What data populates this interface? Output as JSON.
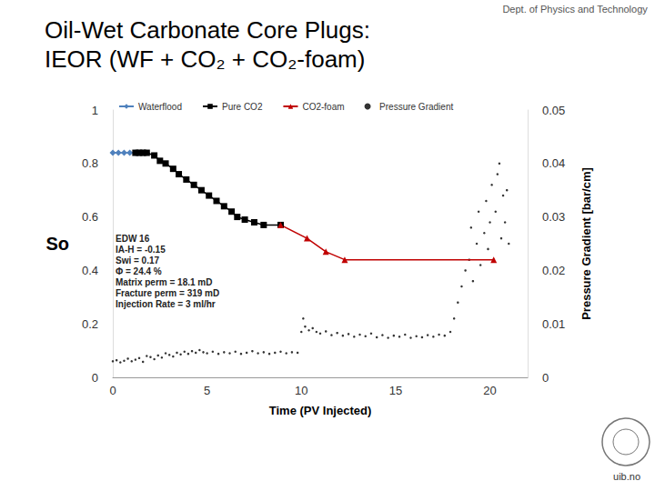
{
  "header": "Dept. of Physics and Technology",
  "footer": "uib.no",
  "chart_data": {
    "type": "line",
    "title": "Oil-Wet Carbonate Core Plugs:",
    "subtitle": "IEOR (WF + CO₂ + CO₂-foam)",
    "x_label": "Time (PV Injected)",
    "y_label": "So",
    "y2_label": "Pressure Gradient [bar/cm]",
    "xlim": [
      0,
      22
    ],
    "xticks": [
      0,
      5,
      10,
      15,
      20
    ],
    "ylim": [
      0,
      1
    ],
    "yticks": [
      0,
      0.2,
      0.4,
      0.6,
      0.8,
      1
    ],
    "y2lim": [
      0,
      0.05
    ],
    "y2ticks": [
      0,
      0.01,
      0.02,
      0.03,
      0.04,
      0.05
    ],
    "grid": false,
    "legend": "top",
    "annotation": [
      "EDW 16",
      "IA-H = -0.15",
      "Swi = 0.17",
      "Φ = 24.4 %",
      "Matrix perm = 18.1 mD",
      "Fracture perm = 319 mD",
      "Injection Rate = 3 ml/hr"
    ],
    "series": [
      {
        "name": "Waterflood",
        "type": "line",
        "color": "#4f81bd",
        "marker": "diamond",
        "line_style": "solid",
        "x": [
          0,
          0.3,
          0.6,
          0.9,
          1.2
        ],
        "values": [
          0.84,
          0.84,
          0.84,
          0.84,
          0.84
        ]
      },
      {
        "name": "Pure CO2",
        "type": "line",
        "color": "#000000",
        "marker": "square",
        "line_style": "solid",
        "x": [
          1.2,
          1.4,
          1.6,
          1.8,
          2.2,
          2.5,
          2.8,
          3.2,
          3.5,
          3.9,
          4.3,
          4.7,
          5.1,
          5.5,
          5.9,
          6.3,
          6.6,
          7.0,
          7.5,
          8.0,
          8.9
        ],
        "values": [
          0.84,
          0.84,
          0.84,
          0.84,
          0.83,
          0.81,
          0.8,
          0.78,
          0.76,
          0.74,
          0.72,
          0.7,
          0.68,
          0.66,
          0.64,
          0.62,
          0.6,
          0.59,
          0.58,
          0.57,
          0.57
        ]
      },
      {
        "name": "CO2-foam",
        "type": "line",
        "color": "#c00000",
        "marker": "triangle",
        "line_style": "solid",
        "x": [
          8.9,
          10.3,
          11.3,
          12.3,
          20.2
        ],
        "values": [
          0.57,
          0.52,
          0.47,
          0.44,
          0.44
        ]
      },
      {
        "name": "Pressure Gradient",
        "type": "scatter",
        "axis": "y2",
        "color": "#000000",
        "marker": "circle",
        "x": [
          0.0,
          0.2,
          0.4,
          0.6,
          0.8,
          1.0,
          1.2,
          1.4,
          1.6,
          1.8,
          2.0,
          2.2,
          2.4,
          2.6,
          2.8,
          3.0,
          3.2,
          3.4,
          3.6,
          3.8,
          4.0,
          4.2,
          4.4,
          4.6,
          4.8,
          5.0,
          5.3,
          5.6,
          5.9,
          6.2,
          6.5,
          6.8,
          7.1,
          7.4,
          7.7,
          8.0,
          8.3,
          8.6,
          8.9,
          9.2,
          9.5,
          9.8,
          10.0,
          10.1,
          10.2,
          10.4,
          10.6,
          10.8,
          11.0,
          11.3,
          11.6,
          11.9,
          12.2,
          12.5,
          12.8,
          13.1,
          13.4,
          13.7,
          14.0,
          14.3,
          14.6,
          14.9,
          15.2,
          15.5,
          15.8,
          16.1,
          16.4,
          16.7,
          17.0,
          17.3,
          17.6,
          17.9,
          18.1,
          18.3,
          18.5,
          18.7,
          18.9,
          19.0,
          19.1,
          19.3,
          19.4,
          19.5,
          19.7,
          19.8,
          19.9,
          20.0,
          20.1,
          20.2,
          20.3,
          20.4,
          20.5,
          20.6,
          20.7,
          20.8,
          20.9,
          21.0
        ],
        "values": [
          0.003,
          0.0032,
          0.0028,
          0.0031,
          0.0035,
          0.003,
          0.0033,
          0.0036,
          0.0029,
          0.004,
          0.0038,
          0.0034,
          0.0041,
          0.0037,
          0.0045,
          0.0042,
          0.0039,
          0.0046,
          0.0043,
          0.0048,
          0.0044,
          0.0049,
          0.0046,
          0.0051,
          0.0047,
          0.0045,
          0.0048,
          0.0044,
          0.0047,
          0.0045,
          0.0048,
          0.0044,
          0.0046,
          0.0049,
          0.0045,
          0.0047,
          0.0044,
          0.0046,
          0.0048,
          0.0045,
          0.0047,
          0.0046,
          0.0085,
          0.011,
          0.0095,
          0.0088,
          0.0092,
          0.0085,
          0.0082,
          0.0086,
          0.0079,
          0.0083,
          0.0078,
          0.0081,
          0.0076,
          0.008,
          0.0077,
          0.0082,
          0.0075,
          0.0079,
          0.0074,
          0.0078,
          0.0076,
          0.008,
          0.0074,
          0.0077,
          0.0075,
          0.0079,
          0.0076,
          0.008,
          0.0078,
          0.0085,
          0.011,
          0.014,
          0.017,
          0.02,
          0.022,
          0.028,
          0.018,
          0.025,
          0.031,
          0.021,
          0.027,
          0.033,
          0.024,
          0.029,
          0.036,
          0.022,
          0.031,
          0.038,
          0.04,
          0.026,
          0.034,
          0.029,
          0.035,
          0.025
        ]
      }
    ]
  }
}
